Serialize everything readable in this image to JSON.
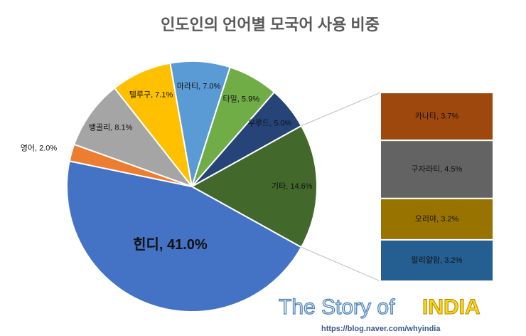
{
  "chart_data": {
    "type": "pie-of-bar",
    "title": "인도인의 언어별 모국어 사용 비중",
    "values": [
      41.0,
      2.0,
      8.1,
      7.1,
      7.0,
      5.9,
      5.0,
      14.6
    ],
    "value_labels": [
      "힌디, 41.0%",
      "영어, 2.0%",
      "뱅골리, 8.1%",
      "텔루구, 7.1%",
      "마라티, 7.0%",
      "타밀, 5.9%",
      "우루드, 5.0%",
      "기타, 14.6%"
    ],
    "colors": [
      "#4472c4",
      "#ed7d31",
      "#a5a5a5",
      "#ffc000",
      "#5b9bd5",
      "#70ad47",
      "#264478",
      "#43682b"
    ],
    "bar": {
      "values": [
        3.7,
        4.5,
        3.2,
        3.2
      ],
      "value_labels": [
        "카나타, 3.7%",
        "구자라티, 4.5%",
        "오리야, 3.2%",
        "말리얄람, 3.2%"
      ],
      "colors": [
        "#9e480e",
        "#636363",
        "#997300",
        "#255e91"
      ]
    },
    "annotations": [
      "The Story of",
      "INDIA",
      "https://blog.naver.com/whyindia"
    ]
  }
}
